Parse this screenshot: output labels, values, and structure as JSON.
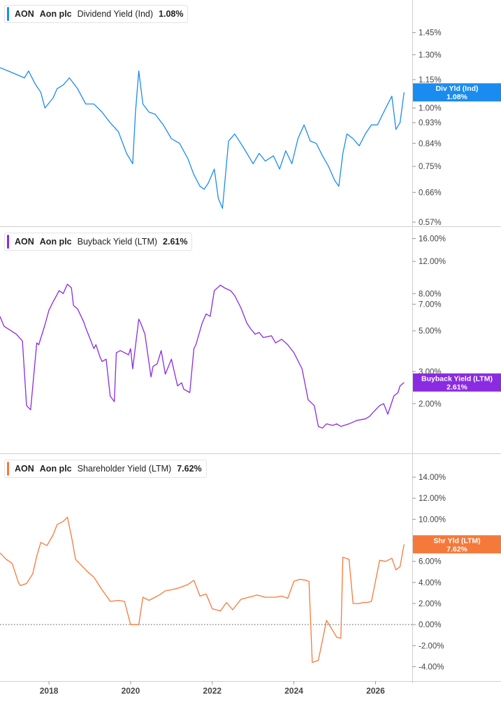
{
  "colors": {
    "dividend": "#1a8cf0",
    "buyback": "#8a2be2",
    "shareholder": "#f5793a",
    "grid": "#d6d6d6",
    "axis_text": "#444444"
  },
  "panels": [
    {
      "legend": {
        "ticker": "AON",
        "company": "Aon plc",
        "metric": "Dividend Yield (Ind)",
        "value": "1.08%"
      },
      "badge": {
        "line1": "Div Yld (Ind)",
        "line2": "1.08%"
      }
    },
    {
      "legend": {
        "ticker": "AON",
        "company": "Aon plc",
        "metric": "Buyback Yield (LTM)",
        "value": "2.61%"
      },
      "badge": {
        "line1": "Buyback Yield (LTM)",
        "line2": "2.61%"
      }
    },
    {
      "legend": {
        "ticker": "AON",
        "company": "Aon plc",
        "metric": "Shareholder Yield (LTM)",
        "value": "7.62%"
      },
      "badge": {
        "line1": "Shr Yld (LTM)",
        "line2": "7.62%"
      }
    }
  ],
  "x_axis": {
    "ticks": [
      "2018",
      "2020",
      "2022",
      "2024",
      "2026"
    ]
  },
  "chart_data": [
    {
      "type": "line",
      "scale": "log",
      "ylim": [
        0.57,
        1.6
      ],
      "yticks": [
        0.57,
        0.66,
        0.75,
        0.84,
        0.93,
        1.0,
        1.15,
        1.3,
        1.45
      ],
      "ytick_labels": [
        "0.57%",
        "0.66%",
        "0.75%",
        "0.84%",
        "0.93%",
        "1.00%",
        "1.15%",
        "1.30%",
        "1.45%"
      ],
      "series": [
        {
          "name": "Dividend Yield (Ind)",
          "x": [
            2016.8,
            2017.0,
            2017.2,
            2017.4,
            2017.5,
            2017.65,
            2017.8,
            2017.9,
            2018.1,
            2018.2,
            2018.35,
            2018.5,
            2018.7,
            2018.9,
            2019.1,
            2019.3,
            2019.5,
            2019.7,
            2019.9,
            2020.05,
            2020.12,
            2020.2,
            2020.3,
            2020.45,
            2020.6,
            2020.8,
            2021.0,
            2021.2,
            2021.4,
            2021.55,
            2021.7,
            2021.8,
            2021.9,
            2022.05,
            2022.15,
            2022.25,
            2022.4,
            2022.55,
            2022.7,
            2022.85,
            2023.0,
            2023.15,
            2023.3,
            2023.5,
            2023.65,
            2023.8,
            2023.95,
            2024.1,
            2024.25,
            2024.4,
            2024.55,
            2024.7,
            2024.85,
            2025.0,
            2025.1,
            2025.2,
            2025.3,
            2025.45,
            2025.6,
            2025.75,
            2025.9,
            2026.05,
            2026.15,
            2026.3,
            2026.4,
            2026.5,
            2026.6,
            2026.7
          ],
          "values": [
            1.22,
            1.2,
            1.18,
            1.16,
            1.2,
            1.13,
            1.08,
            1.0,
            1.05,
            1.1,
            1.12,
            1.16,
            1.1,
            1.02,
            1.02,
            0.98,
            0.93,
            0.89,
            0.8,
            0.76,
            0.98,
            1.2,
            1.02,
            0.98,
            0.97,
            0.92,
            0.86,
            0.84,
            0.78,
            0.72,
            0.68,
            0.67,
            0.69,
            0.74,
            0.64,
            0.61,
            0.85,
            0.88,
            0.84,
            0.8,
            0.76,
            0.8,
            0.77,
            0.79,
            0.74,
            0.81,
            0.76,
            0.86,
            0.92,
            0.85,
            0.84,
            0.79,
            0.75,
            0.7,
            0.68,
            0.8,
            0.88,
            0.86,
            0.83,
            0.88,
            0.92,
            0.92,
            0.96,
            1.02,
            1.06,
            0.9,
            0.93,
            1.08
          ]
        }
      ]
    },
    {
      "type": "line",
      "scale": "log",
      "ylim": [
        1.38,
        16.8
      ],
      "yticks": [
        2,
        3,
        5,
        7,
        8,
        12,
        16
      ],
      "ytick_labels": [
        "2.00%",
        "3.00%",
        "5.00%",
        "7.00%",
        "8.00%",
        "12.00%",
        "16.00%"
      ],
      "series": [
        {
          "name": "Buyback Yield (LTM)",
          "x": [
            2016.8,
            2016.9,
            2017.2,
            2017.35,
            2017.45,
            2017.55,
            2017.7,
            2017.75,
            2017.9,
            2018.0,
            2018.1,
            2018.25,
            2018.35,
            2018.45,
            2018.55,
            2018.6,
            2018.7,
            2018.85,
            2018.9,
            2019.1,
            2019.15,
            2019.25,
            2019.3,
            2019.4,
            2019.5,
            2019.6,
            2019.65,
            2019.75,
            2019.85,
            2019.95,
            2020.0,
            2020.05,
            2020.2,
            2020.25,
            2020.35,
            2020.5,
            2020.55,
            2020.65,
            2020.75,
            2020.85,
            2021.0,
            2021.15,
            2021.25,
            2021.3,
            2021.45,
            2021.55,
            2021.6,
            2021.75,
            2021.85,
            2021.95,
            2022.05,
            2022.2,
            2022.3,
            2022.45,
            2022.55,
            2022.7,
            2022.85,
            2022.95,
            2023.05,
            2023.15,
            2023.25,
            2023.45,
            2023.55,
            2023.7,
            2023.85,
            2024.0,
            2024.2,
            2024.35,
            2024.5,
            2024.6,
            2024.7,
            2024.8,
            2024.95,
            2025.05,
            2025.15,
            2025.35,
            2025.55,
            2025.75,
            2025.85,
            2025.95,
            2026.1,
            2026.2,
            2026.3,
            2026.45,
            2026.55,
            2026.6,
            2026.7
          ],
          "values": [
            6.0,
            5.3,
            4.8,
            4.4,
            1.95,
            1.85,
            4.3,
            4.2,
            5.4,
            6.5,
            7.2,
            8.3,
            8.0,
            9.0,
            8.6,
            6.9,
            6.6,
            5.6,
            5.2,
            4.0,
            4.2,
            3.6,
            3.4,
            3.5,
            2.2,
            2.05,
            3.8,
            3.9,
            3.8,
            3.7,
            4.0,
            3.1,
            5.8,
            5.5,
            4.8,
            2.8,
            3.2,
            3.3,
            3.9,
            2.9,
            3.5,
            2.5,
            2.6,
            2.4,
            2.3,
            4.0,
            4.2,
            5.5,
            6.2,
            6.0,
            8.3,
            8.9,
            8.6,
            8.3,
            7.8,
            6.7,
            5.5,
            5.1,
            4.8,
            4.9,
            4.6,
            4.7,
            4.3,
            4.5,
            4.2,
            3.8,
            3.1,
            2.1,
            1.95,
            1.5,
            1.47,
            1.55,
            1.52,
            1.55,
            1.5,
            1.55,
            1.62,
            1.65,
            1.7,
            1.8,
            1.95,
            2.0,
            1.75,
            2.2,
            2.3,
            2.5,
            2.61
          ]
        }
      ]
    },
    {
      "type": "line",
      "scale": "linear",
      "ylim": [
        -4.5,
        15.0
      ],
      "yticks": [
        -4,
        -2,
        0,
        2,
        4,
        6,
        8,
        10,
        12,
        14
      ],
      "ytick_labels": [
        "-4.00%",
        "-2.00%",
        "0.00%",
        "2.00%",
        "4.00%",
        "6.00%",
        "8.00%",
        "10.00%",
        "12.00%",
        "14.00%"
      ],
      "series": [
        {
          "name": "Shareholder Yield (LTM)",
          "x": [
            2016.8,
            2016.95,
            2017.1,
            2017.25,
            2017.3,
            2017.45,
            2017.6,
            2017.7,
            2017.8,
            2017.95,
            2018.1,
            2018.2,
            2018.35,
            2018.45,
            2018.55,
            2018.65,
            2018.8,
            2018.95,
            2019.1,
            2019.3,
            2019.45,
            2019.5,
            2019.7,
            2019.85,
            2020.0,
            2020.2,
            2020.3,
            2020.45,
            2020.7,
            2020.85,
            2021.0,
            2021.2,
            2021.4,
            2021.55,
            2021.7,
            2021.85,
            2022.0,
            2022.2,
            2022.35,
            2022.5,
            2022.7,
            2022.9,
            2023.1,
            2023.3,
            2023.55,
            2023.7,
            2023.85,
            2024.0,
            2024.15,
            2024.3,
            2024.37,
            2024.45,
            2024.6,
            2024.8,
            2025.05,
            2025.15,
            2025.2,
            2025.35,
            2025.45,
            2025.6,
            2025.7,
            2025.8,
            2025.9,
            2026.1,
            2026.25,
            2026.4,
            2026.5,
            2026.6,
            2026.7
          ],
          "values": [
            6.8,
            6.2,
            5.8,
            4.0,
            3.7,
            3.9,
            4.8,
            6.5,
            7.8,
            7.5,
            8.5,
            9.5,
            9.8,
            10.2,
            8.4,
            6.2,
            5.6,
            5.0,
            4.5,
            3.3,
            2.5,
            2.2,
            2.3,
            2.2,
            0.0,
            0.0,
            2.6,
            2.3,
            2.8,
            3.2,
            3.3,
            3.5,
            3.8,
            4.2,
            2.7,
            2.9,
            1.5,
            1.3,
            2.1,
            1.4,
            2.4,
            2.6,
            2.8,
            2.6,
            2.6,
            2.7,
            2.5,
            4.1,
            4.3,
            4.2,
            4.1,
            -3.6,
            -3.4,
            0.4,
            -1.2,
            -1.3,
            6.4,
            6.2,
            2.0,
            2.0,
            2.1,
            2.1,
            2.2,
            6.1,
            6.0,
            6.3,
            5.2,
            5.5,
            7.62
          ]
        }
      ]
    }
  ]
}
